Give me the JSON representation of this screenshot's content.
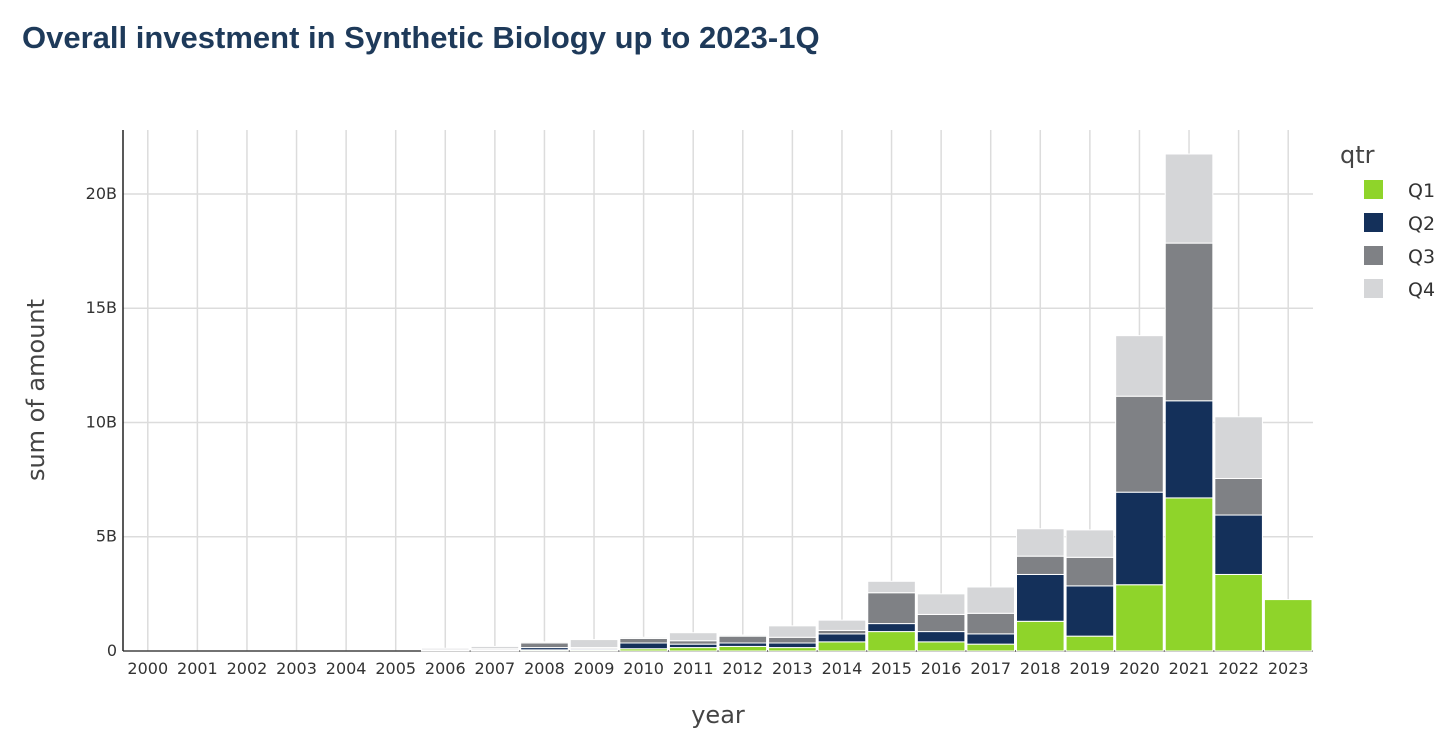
{
  "chart_data": {
    "type": "bar",
    "stacked": true,
    "title": "Overall investment in Synthetic Biology up to 2023-1Q",
    "xlabel": "year",
    "ylabel": "sum of amount",
    "ylim": [
      0,
      22800000000
    ],
    "yticks": [
      0,
      5000000000,
      10000000000,
      15000000000,
      20000000000
    ],
    "ytick_labels": [
      "0",
      "5B",
      "10B",
      "15B",
      "20B"
    ],
    "categories": [
      "2000",
      "2001",
      "2002",
      "2003",
      "2004",
      "2005",
      "2006",
      "2007",
      "2008",
      "2009",
      "2010",
      "2011",
      "2012",
      "2013",
      "2014",
      "2015",
      "2016",
      "2017",
      "2018",
      "2019",
      "2020",
      "2021",
      "2022",
      "2023"
    ],
    "legend_title": "qtr",
    "legend_position": "right",
    "series": [
      {
        "name": "Q1",
        "color": "#8fd42a",
        "values": [
          0,
          0,
          0,
          0,
          0,
          0,
          10000000.0,
          20000000.0,
          50000000.0,
          50000000.0,
          100000000.0,
          150000000.0,
          200000000.0,
          150000000.0,
          400000000.0,
          850000000.0,
          400000000.0,
          300000000.0,
          1300000000.0,
          650000000.0,
          2900000000.0,
          6700000000.0,
          3350000000.0,
          2250000000.0
        ]
      },
      {
        "name": "Q2",
        "color": "#14305a",
        "values": [
          0,
          0,
          0,
          0,
          0,
          0,
          20000000.0,
          30000000.0,
          100000000.0,
          50000000.0,
          250000000.0,
          150000000.0,
          150000000.0,
          200000000.0,
          350000000.0,
          350000000.0,
          450000000.0,
          450000000.0,
          2050000000.0,
          2200000000.0,
          4050000000.0,
          4250000000.0,
          2600000000.0,
          0
        ]
      },
      {
        "name": "Q3",
        "color": "#7f8185",
        "values": [
          0,
          0,
          0,
          0,
          0,
          0,
          20000000.0,
          50000000.0,
          200000000.0,
          50000000.0,
          200000000.0,
          150000000.0,
          300000000.0,
          250000000.0,
          150000000.0,
          1350000000.0,
          750000000.0,
          900000000.0,
          800000000.0,
          1250000000.0,
          4200000000.0,
          6900000000.0,
          1600000000.0,
          0
        ]
      },
      {
        "name": "Q4",
        "color": "#d5d6d8",
        "values": [
          0,
          0,
          0,
          0,
          0,
          0,
          70000000.0,
          100000000.0,
          50000000.0,
          350000000.0,
          50000000.0,
          350000000.0,
          50000000.0,
          500000000.0,
          450000000.0,
          500000000.0,
          900000000.0,
          1150000000.0,
          1200000000.0,
          1200000000.0,
          2650000000.0,
          3900000000.0,
          2700000000.0,
          0
        ]
      }
    ]
  }
}
